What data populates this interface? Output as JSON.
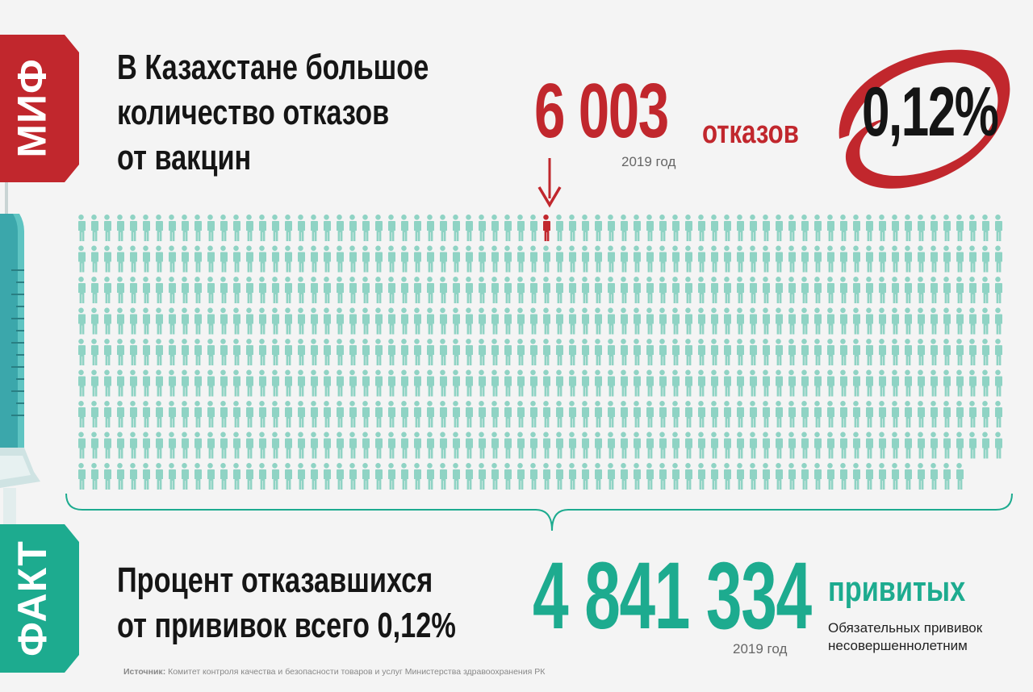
{
  "myth": {
    "tag": "МИФ",
    "headline": [
      "В Казахстане большое",
      "количество отказов",
      "от вакцин"
    ],
    "refusals_value": "6 003",
    "refusals_unit": "отказов",
    "refusals_year": "2019 год",
    "percent": "0,12%"
  },
  "fact": {
    "tag": "ФАКТ",
    "headline": [
      "Процент отказавшихся",
      "от прививок всего 0,12%"
    ],
    "vaccinated_value": "4 841 334",
    "vaccinated_unit": "привитых",
    "vaccinated_year": "2019 год",
    "note": [
      "Обязательных прививок",
      "несовершеннолетним"
    ]
  },
  "source": {
    "label": "Источник:",
    "text": " Комитет контроля качества и безопасности товаров и услуг Министерства здравоохранения РК"
  },
  "colors": {
    "red": "#c1272d",
    "teal": "#1dab8f",
    "figure": "#8fd3c4",
    "background": "#f4f4f4"
  },
  "pictogram": {
    "rows": 9,
    "columns": 72,
    "last_row_count": 69,
    "highlighted": {
      "row": 1,
      "column": 37
    }
  }
}
